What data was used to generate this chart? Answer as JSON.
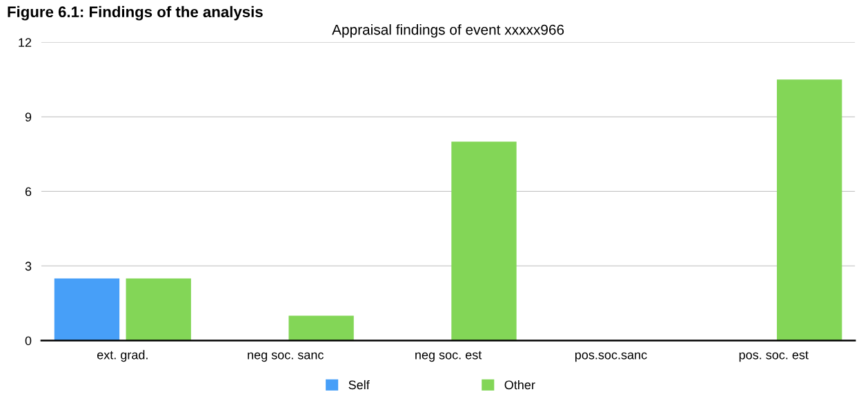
{
  "chart_data": {
    "type": "bar",
    "title": "Appraisal findings of event xxxxx966",
    "annotations": [
      "Figure 6.1: Findings of the analysis"
    ],
    "categories": [
      "ext. grad.",
      "neg soc. sanc",
      "neg soc. est",
      "pos.soc.sanc",
      "pos. soc. est"
    ],
    "series": [
      {
        "name": "Self",
        "color": "#479ff8",
        "values": [
          2.5,
          0,
          0,
          0,
          0
        ]
      },
      {
        "name": "Other",
        "color": "#83d657",
        "values": [
          2.5,
          1,
          8,
          0,
          10.5
        ]
      }
    ],
    "ylim": [
      0,
      12
    ],
    "yticks": [
      0,
      3,
      6,
      9,
      12
    ],
    "grid": "y",
    "legend": "bottom"
  }
}
